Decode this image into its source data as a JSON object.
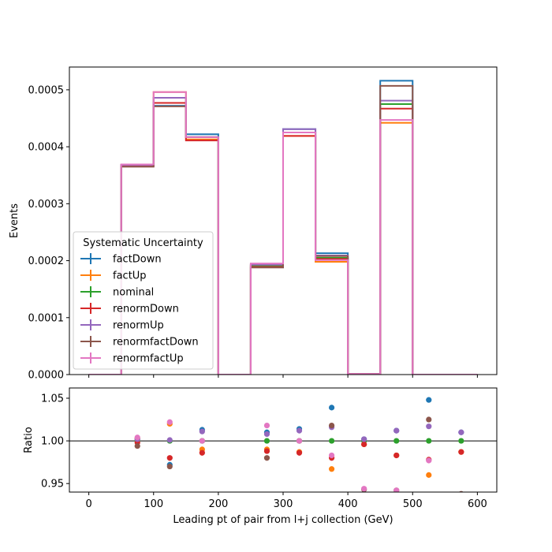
{
  "chart_data": [
    {
      "type": "line",
      "subtype": "step-histogram",
      "ylabel": "Events",
      "xlim": [
        -30,
        630
      ],
      "ylim": [
        0,
        0.00054
      ],
      "yticks": [
        "0.0000",
        "0.0001",
        "0.0002",
        "0.0003",
        "0.0004",
        "0.0005"
      ],
      "ytick_values": [
        0,
        0.0001,
        0.0002,
        0.0003,
        0.0004,
        0.0005
      ],
      "bin_edges": [
        0,
        50,
        100,
        150,
        200,
        250,
        300,
        350,
        400,
        450,
        500,
        550,
        600
      ],
      "legend": {
        "title": "Systematic Uncertainty",
        "placement": "lower-left"
      },
      "series": [
        {
          "name": "factDown",
          "color": "#1f77b4",
          "values": [
            0,
            0.000368,
            0.000472,
            0.000422,
            0,
            0.000193,
            0.000431,
            0.000213,
            1e-06,
            0.000516,
            0,
            0
          ]
        },
        {
          "name": "factUp",
          "color": "#ff7f0e",
          "values": [
            0,
            0.000368,
            0.000496,
            0.000413,
            0,
            0.000193,
            0.000419,
            0.000198,
            1e-06,
            0.000442,
            0,
            0
          ]
        },
        {
          "name": "nominal",
          "color": "#2ca02c",
          "values": [
            0,
            0.000367,
            0.000486,
            0.000417,
            0,
            0.000191,
            0.000425,
            0.000205,
            1e-06,
            0.000475,
            0,
            0
          ]
        },
        {
          "name": "renormDown",
          "color": "#d62728",
          "values": [
            0,
            0.000366,
            0.000477,
            0.000411,
            0,
            0.000189,
            0.000419,
            0.000203,
            1e-06,
            0.000467,
            0,
            0
          ]
        },
        {
          "name": "renormUp",
          "color": "#9467bd",
          "values": [
            0,
            0.000368,
            0.000486,
            0.000417,
            0,
            0.000193,
            0.000431,
            0.000209,
            1e-06,
            0.000481,
            0,
            0
          ]
        },
        {
          "name": "renormfactDown",
          "color": "#8c564b",
          "values": [
            0,
            0.000365,
            0.000471,
            0.000417,
            0,
            0.000188,
            0.000425,
            0.000208,
            1e-06,
            0.000507,
            0,
            0
          ]
        },
        {
          "name": "renormfactUp",
          "color": "#e377c2",
          "values": [
            0,
            0.000369,
            0.000496,
            0.000417,
            0,
            0.000195,
            0.000425,
            0.000201,
            1e-06,
            0.000447,
            0,
            0
          ]
        }
      ]
    },
    {
      "type": "scatter",
      "xlabel": "Leading pt of pair from l+j collection (GeV)",
      "ylabel": "Ratio",
      "xlim": [
        -30,
        630
      ],
      "ylim": [
        0.94,
        1.062
      ],
      "xticks": [
        "0",
        "100",
        "200",
        "300",
        "400",
        "500",
        "600"
      ],
      "xtick_values": [
        0,
        100,
        200,
        300,
        400,
        500,
        600
      ],
      "yticks": [
        "0.95",
        "1.00",
        "1.05"
      ],
      "ytick_values": [
        0.95,
        1.0,
        1.05
      ],
      "reference_line": 1.0,
      "x": [
        75,
        125,
        175,
        275,
        325,
        375,
        425,
        475,
        525,
        575
      ],
      "series": [
        {
          "name": "factDown",
          "color": "#1f77b4",
          "values": [
            1.002,
            0.972,
            1.013,
            1.01,
            1.014,
            1.039,
            1.002,
            1.012,
            1.048,
            1.01
          ]
        },
        {
          "name": "factUp",
          "color": "#ff7f0e",
          "values": [
            1.003,
            1.02,
            0.99,
            0.99,
            0.987,
            0.967,
            0.996,
            0.983,
            0.96,
            0.987
          ]
        },
        {
          "name": "nominal",
          "color": "#2ca02c",
          "values": [
            1.0,
            1.0,
            1.0,
            1.0,
            1.0,
            1.0,
            1.0,
            1.0,
            1.0,
            1.0
          ]
        },
        {
          "name": "renormDown",
          "color": "#d62728",
          "values": [
            0.998,
            0.98,
            0.986,
            0.988,
            0.986,
            0.98,
            0.996,
            0.983,
            0.978,
            0.987
          ]
        },
        {
          "name": "renormUp",
          "color": "#9467bd",
          "values": [
            1.002,
            1.001,
            1.011,
            1.008,
            1.012,
            1.016,
            1.002,
            1.012,
            1.017,
            1.01
          ]
        },
        {
          "name": "renormfactDown",
          "color": "#8c564b",
          "values": [
            0.994,
            0.97,
            1.0,
            0.98,
            1.0,
            1.018,
            0.943,
            0.942,
            1.025,
            0.938
          ]
        },
        {
          "name": "renormfactUp",
          "color": "#e377c2",
          "values": [
            1.004,
            1.022,
            1.0,
            1.018,
            1.0,
            0.983,
            0.944,
            0.942,
            0.977,
            0.937
          ]
        }
      ]
    }
  ]
}
